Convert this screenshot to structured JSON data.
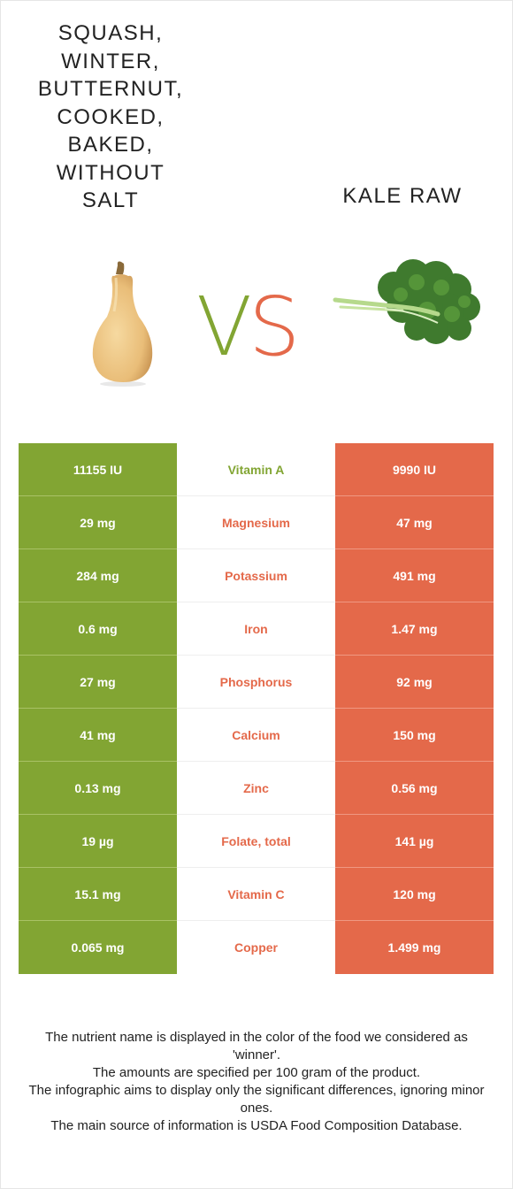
{
  "left_food": {
    "title_lines": [
      "SQUASH,",
      "WINTER,",
      "BUTTERNUT,",
      "COOKED,",
      "BAKED,",
      "WITHOUT",
      "SALT"
    ],
    "color": "#82a533",
    "icon": "butternut-squash-image"
  },
  "right_food": {
    "title": "KALE RAW",
    "color": "#e4694a",
    "icon": "kale-image"
  },
  "vs": {
    "v": "V",
    "s": "S"
  },
  "nutrients": [
    {
      "name": "Vitamin A",
      "left": "11155 IU",
      "right": "9990 IU",
      "winner": "left"
    },
    {
      "name": "Magnesium",
      "left": "29 mg",
      "right": "47 mg",
      "winner": "right"
    },
    {
      "name": "Potassium",
      "left": "284 mg",
      "right": "491 mg",
      "winner": "right"
    },
    {
      "name": "Iron",
      "left": "0.6 mg",
      "right": "1.47 mg",
      "winner": "right"
    },
    {
      "name": "Phosphorus",
      "left": "27 mg",
      "right": "92 mg",
      "winner": "right"
    },
    {
      "name": "Calcium",
      "left": "41 mg",
      "right": "150 mg",
      "winner": "right"
    },
    {
      "name": "Zinc",
      "left": "0.13 mg",
      "right": "0.56 mg",
      "winner": "right"
    },
    {
      "name": "Folate, total",
      "left": "19 µg",
      "right": "141 µg",
      "winner": "right"
    },
    {
      "name": "Vitamin C",
      "left": "15.1 mg",
      "right": "120 mg",
      "winner": "right"
    },
    {
      "name": "Copper",
      "left": "0.065 mg",
      "right": "1.499 mg",
      "winner": "right"
    }
  ],
  "footer": [
    "The nutrient name is displayed in the color of the food we considered as 'winner'.",
    "The amounts are specified per 100 gram of the product.",
    "The infographic aims to display only the significant differences, ignoring minor ones.",
    "The main source of information is USDA Food Composition Database."
  ]
}
